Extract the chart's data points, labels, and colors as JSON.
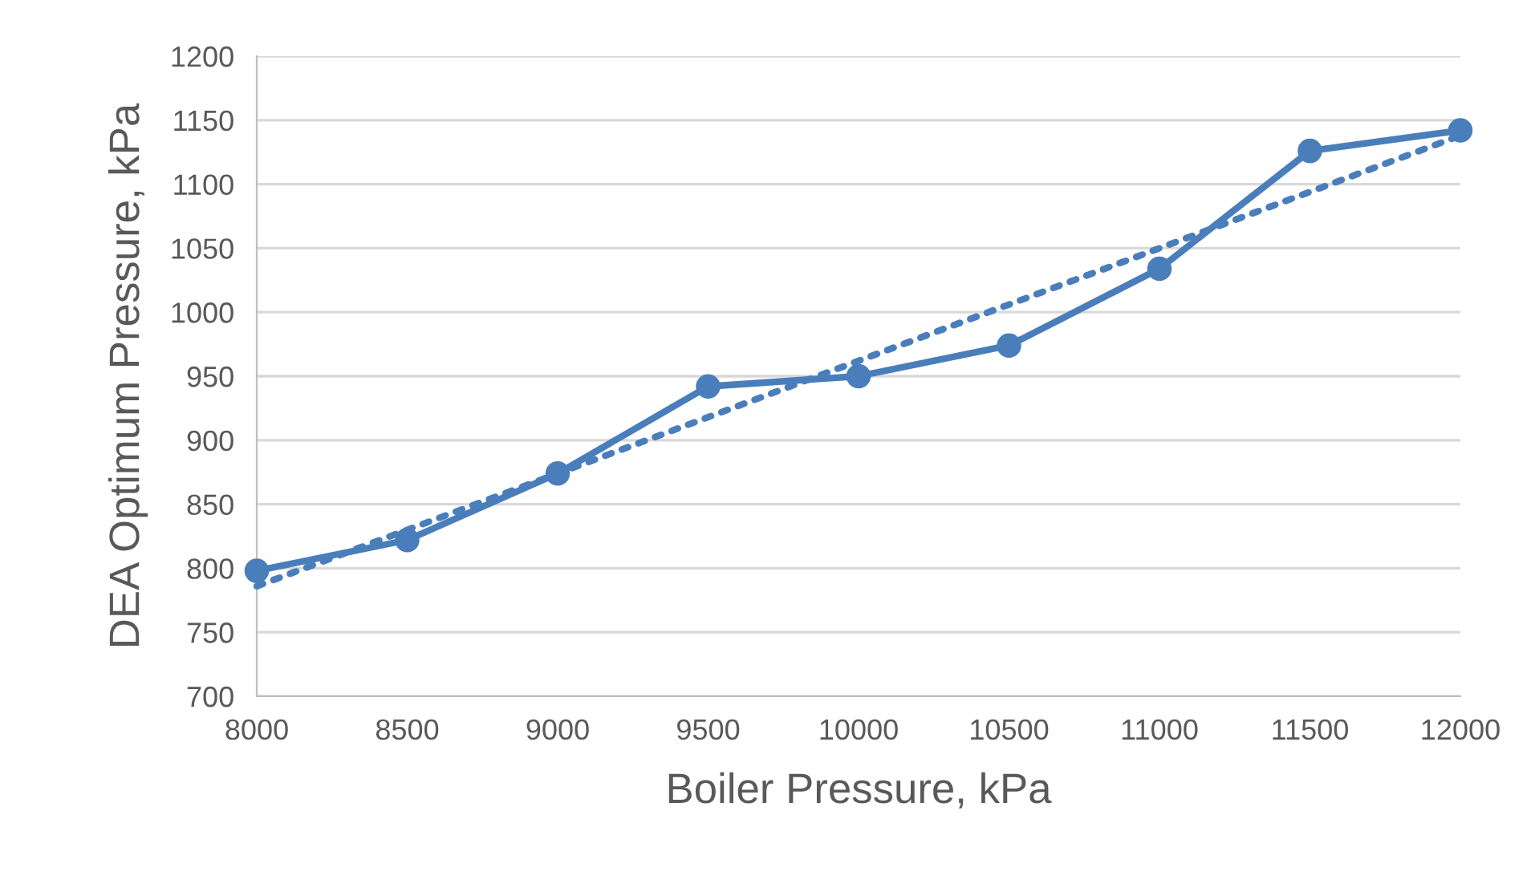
{
  "chart_data": {
    "type": "line",
    "xlabel": "Boiler Pressure, kPa",
    "ylabel": "DEA Optimum Pressure, kPa",
    "x": [
      8000,
      8500,
      9000,
      9500,
      10000,
      10500,
      11000,
      11500,
      12000
    ],
    "series": [
      {
        "color": "#4a7ebb",
        "values": [
          798,
          822,
          874,
          942,
          950,
          974,
          1034,
          1126,
          1142
        ],
        "marker": "circle",
        "line_style": "solid"
      },
      {
        "type": "line",
        "color": "#4a7ebb",
        "x": [
          8000,
          12000
        ],
        "values": [
          786,
          1138
        ],
        "marker": "none",
        "line_style": "dotted"
      }
    ],
    "xlim": [
      8000,
      12000
    ],
    "xticks": [
      8000,
      8500,
      9000,
      9500,
      10000,
      10500,
      11000,
      11500,
      12000
    ],
    "ylim": [
      700,
      1200
    ],
    "yticks": [
      700,
      750,
      800,
      850,
      900,
      950,
      1000,
      1050,
      1100,
      1150,
      1200
    ],
    "grid": "y",
    "legend": false
  }
}
